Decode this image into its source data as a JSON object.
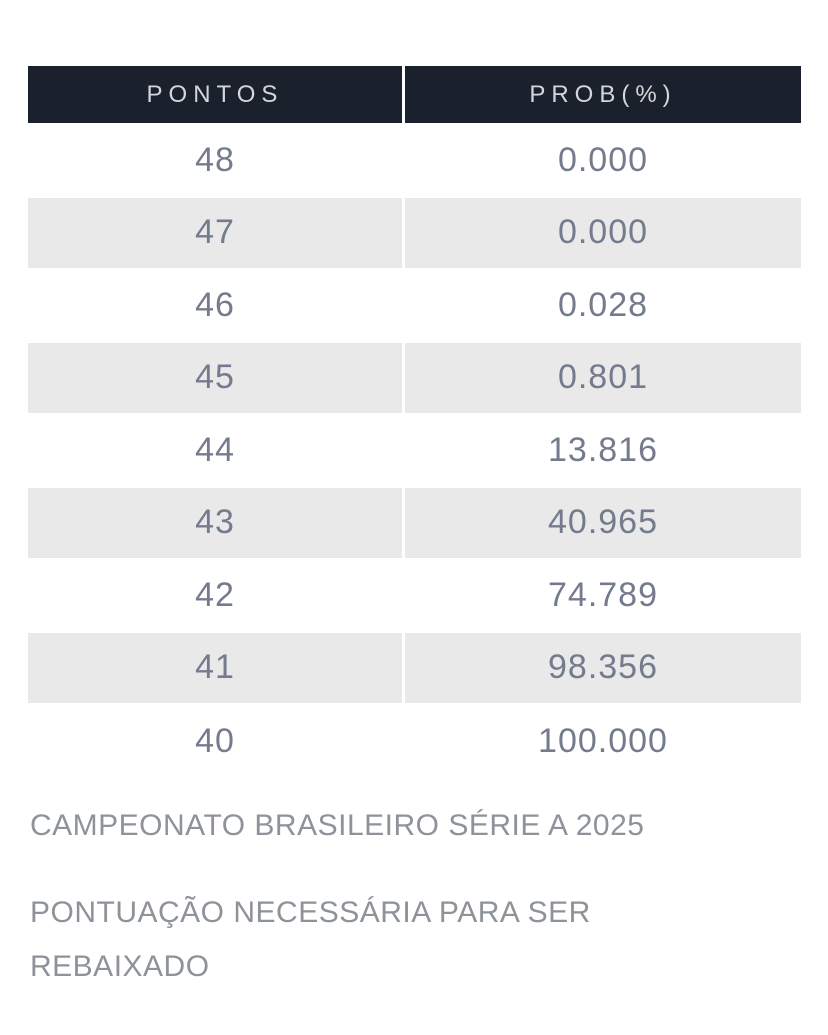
{
  "table": {
    "headers": [
      "PONTOS",
      "PROB(%)"
    ],
    "rows": [
      {
        "pontos": "48",
        "prob": "0.000"
      },
      {
        "pontos": "47",
        "prob": "0.000"
      },
      {
        "pontos": "46",
        "prob": "0.028"
      },
      {
        "pontos": "45",
        "prob": "0.801"
      },
      {
        "pontos": "44",
        "prob": "13.816"
      },
      {
        "pontos": "43",
        "prob": "40.965"
      },
      {
        "pontos": "42",
        "prob": "74.789"
      },
      {
        "pontos": "41",
        "prob": "98.356"
      },
      {
        "pontos": "40",
        "prob": "100.000"
      }
    ]
  },
  "captions": {
    "line1": "CAMPEONATO BRASILEIRO SÉRIE A 2025",
    "line2a": "PONTUAÇÃO NECESSÁRIA PARA SER",
    "line2b": "REBAIXADO"
  },
  "colors": {
    "header_bg": "#1b212c",
    "header_text": "#d3d6da",
    "row_alt_bg": "#e9e9ea",
    "row_bg": "#ffffff",
    "cell_text": "#747b8d",
    "caption_text": "#8d9399"
  },
  "chart_data": {
    "type": "table",
    "columns": [
      "PONTOS",
      "PROB(%)"
    ],
    "rows": [
      [
        48,
        0.0
      ],
      [
        47,
        0.0
      ],
      [
        46,
        0.028
      ],
      [
        45,
        0.801
      ],
      [
        44,
        13.816
      ],
      [
        43,
        40.965
      ],
      [
        42,
        74.789
      ],
      [
        41,
        98.356
      ],
      [
        40,
        100.0
      ]
    ],
    "title": "CAMPEONATO BRASILEIRO SÉRIE A 2025",
    "subtitle": "PONTUAÇÃO NECESSÁRIA PARA SER REBAIXADO",
    "layout": {
      "striped": true,
      "header_style": "dark",
      "caption_position": "below"
    }
  }
}
